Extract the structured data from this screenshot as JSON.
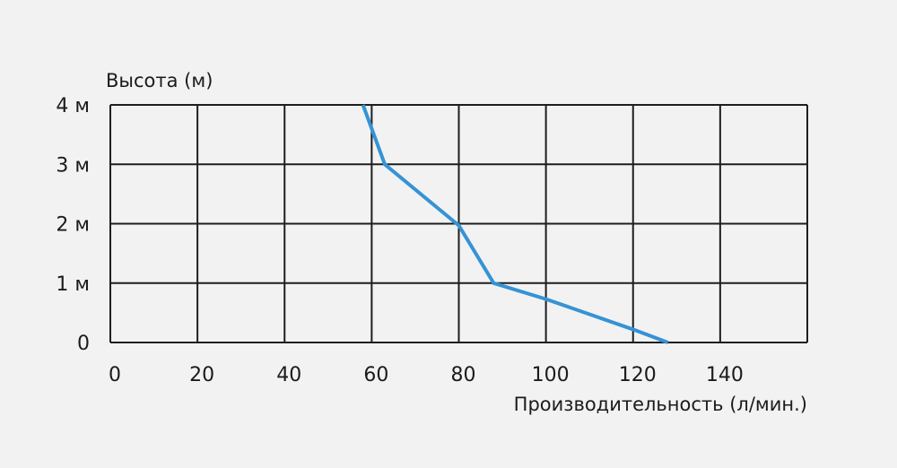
{
  "chart_data": {
    "type": "line",
    "ylabel": "Высота (м)",
    "xlabel": "Производительность (л/мин.)",
    "x_ticks": [
      "0",
      "20",
      "40",
      "60",
      "80",
      "100",
      "120",
      "140"
    ],
    "y_ticks": [
      "0",
      "1 м",
      "2 м",
      "3 м",
      "4 м"
    ],
    "xlim": [
      0,
      160
    ],
    "ylim": [
      0,
      4
    ],
    "grid": true,
    "line_color": "#3593d4",
    "grid_color": "#1e1e1e",
    "series": [
      {
        "x": [
          128,
          120,
          100,
          88,
          80,
          63,
          58
        ],
        "y": [
          0,
          0.22,
          0.73,
          1.0,
          1.97,
          3.0,
          4.0
        ]
      }
    ]
  }
}
